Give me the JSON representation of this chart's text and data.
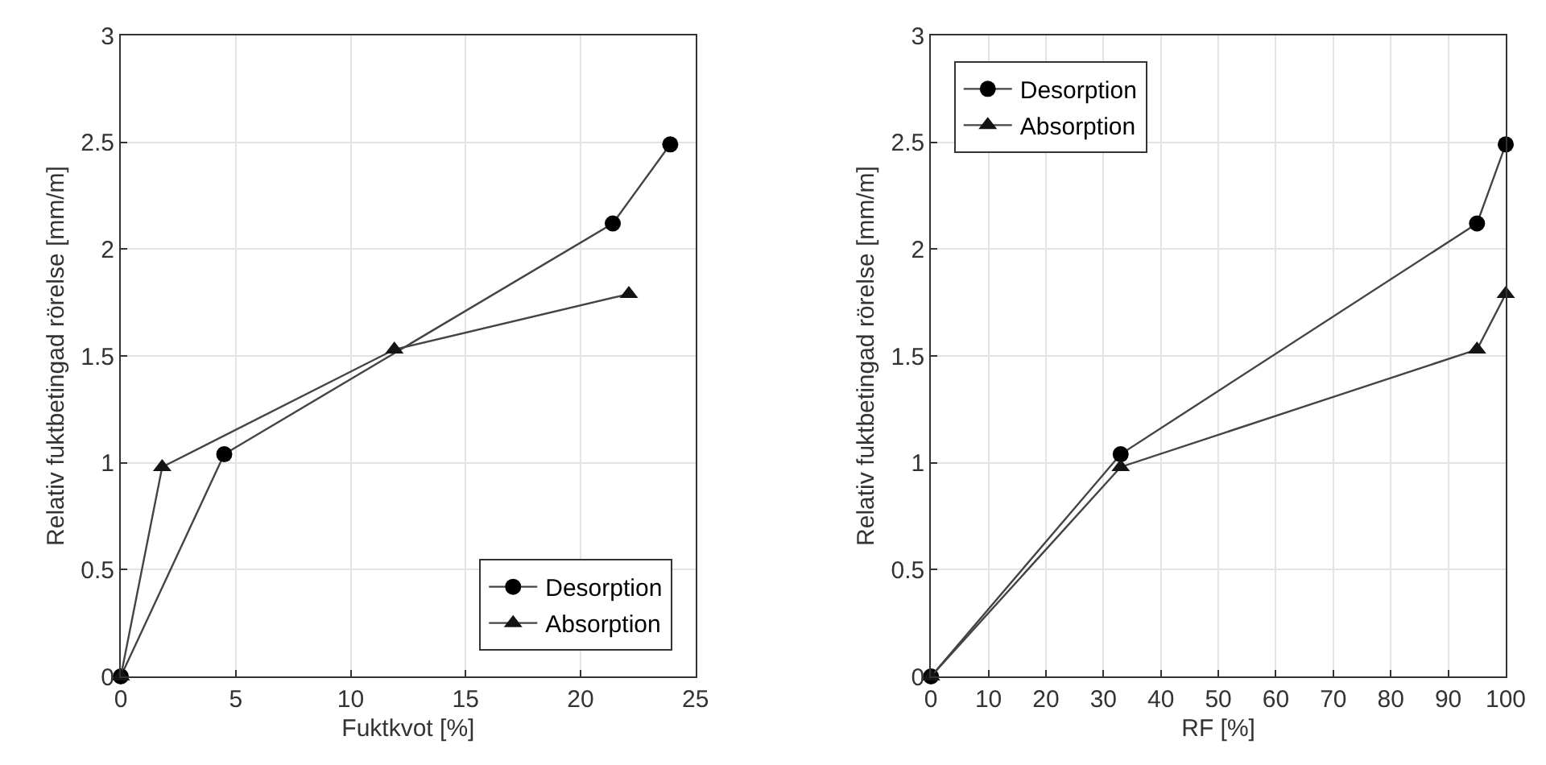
{
  "chart_data": [
    {
      "type": "line",
      "xlabel": "Fuktkvot [%]",
      "ylabel": "Relativ fuktbetingad rörelse [mm/m]",
      "xlim": [
        0,
        25
      ],
      "xticks": [
        0,
        5,
        10,
        15,
        20,
        25
      ],
      "ylim": [
        0,
        3
      ],
      "yticks": [
        0,
        0.5,
        1,
        1.5,
        2,
        2.5,
        3
      ],
      "grid": true,
      "legend": "bottom right",
      "line_style": "solid",
      "series": [
        {
          "name": "Desorption",
          "color": "#000000",
          "marker": "circle",
          "x": [
            0,
            4.5,
            21.4,
            23.9
          ],
          "values": [
            0,
            1.04,
            2.12,
            2.49
          ]
        },
        {
          "name": "Absorption",
          "color": "#141414",
          "marker": "triangle",
          "x": [
            0,
            1.8,
            11.9,
            22.1
          ],
          "values": [
            0,
            0.98,
            1.53,
            1.79
          ]
        }
      ]
    },
    {
      "type": "line",
      "xlabel": "RF [%]",
      "ylabel": "Relativ fuktbetingad rörelse [mm/m]",
      "xlim": [
        0,
        100
      ],
      "xticks": [
        0,
        10,
        20,
        30,
        40,
        50,
        60,
        70,
        80,
        90,
        100
      ],
      "ylim": [
        0,
        3
      ],
      "yticks": [
        0,
        0.5,
        1,
        1.5,
        2,
        2.5,
        3
      ],
      "grid": true,
      "legend": "top left",
      "line_style": "solid",
      "series": [
        {
          "name": "Desorption",
          "color": "#000000",
          "marker": "circle",
          "x": [
            0,
            33,
            95,
            100
          ],
          "values": [
            0,
            1.04,
            2.12,
            2.49
          ]
        },
        {
          "name": "Absorption",
          "color": "#141414",
          "marker": "triangle",
          "x": [
            0,
            33,
            95,
            100
          ],
          "values": [
            0,
            0.98,
            1.53,
            1.79
          ]
        }
      ]
    }
  ]
}
